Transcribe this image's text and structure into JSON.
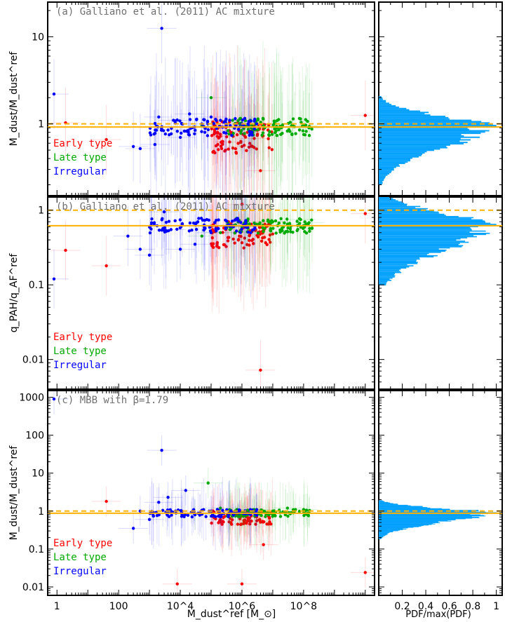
{
  "figure": {
    "x_axis_label": "M_dust^ref [M_⊙]",
    "histogram_x_label": "PDF/max(PDF)",
    "histogram_x_ticks": [
      "0.2",
      "0.4",
      "0.6",
      "0.8",
      "1"
    ]
  },
  "colors": {
    "early": "#ff0000",
    "late": "#00aa00",
    "irregular": "#0000ff",
    "reference_line": "#ffb000",
    "histogram": "#00a0ff"
  },
  "chart_data": [
    {
      "type": "scatter",
      "panel": "a",
      "title": "(a) Galliano et al. (2011) AC mixture",
      "ylabel": "M_dust/M_dust^ref",
      "x_scale": "log",
      "y_scale": "log",
      "xlim": [
        0.5,
        20000000000
      ],
      "ylim": [
        0.15,
        25
      ],
      "x_ticks": [
        "1",
        "100",
        "10^4",
        "10^6",
        "10^8"
      ],
      "y_ticks": [
        "1",
        "10"
      ],
      "reference_dashed": 1.0,
      "median_solid": 0.92,
      "legend": [
        "Early type",
        "Late type",
        "Irregular"
      ],
      "legend_position": "bottom-left",
      "series": [
        {
          "name": "Early type",
          "color": "#ff0000",
          "points": [
            [
              1.9,
              1.03
            ],
            [
              40,
              0.66
            ],
            [
              200000,
              0.72
            ],
            [
              400000,
              0.62
            ],
            [
              700000,
              0.75
            ],
            [
              1000000,
              0.55
            ],
            [
              1500000,
              0.8
            ],
            [
              2500000,
              0.68
            ],
            [
              4000000,
              0.29
            ],
            [
              7000000,
              0.85
            ],
            [
              10000000000,
              1.25
            ]
          ]
        },
        {
          "name": "Late type",
          "color": "#00aa00",
          "points": [
            [
              50000,
              0.95
            ],
            [
              100000,
              2.0
            ],
            [
              500000,
              1.1
            ],
            [
              1000000,
              0.97
            ],
            [
              2000000,
              0.9
            ],
            [
              5000000,
              0.95
            ],
            [
              20000000,
              0.92
            ],
            [
              50000000,
              0.93
            ],
            [
              100000000,
              0.95
            ],
            [
              150000000,
              0.9
            ]
          ]
        },
        {
          "name": "Irregular",
          "color": "#0000ff",
          "points": [
            [
              0.8,
              2.2
            ],
            [
              300,
              0.55
            ],
            [
              500,
              0.52
            ],
            [
              1500,
              0.58
            ],
            [
              2000,
              1.2
            ],
            [
              2500,
              12.5
            ],
            [
              4000,
              0.85
            ],
            [
              6000,
              1.1
            ],
            [
              10000,
              0.7
            ],
            [
              20000,
              1.3
            ],
            [
              50000,
              1.0
            ],
            [
              100000,
              1.2
            ],
            [
              400000,
              1.1
            ],
            [
              1000000,
              1.0
            ],
            [
              3000000,
              1.0
            ]
          ]
        }
      ]
    },
    {
      "type": "scatter",
      "panel": "b",
      "title": "(b) Galliano et al. (2011) AC mixture",
      "ylabel": "q_PAH/q_AF^ref",
      "x_scale": "log",
      "y_scale": "log",
      "xlim": [
        0.5,
        20000000000
      ],
      "ylim": [
        0.004,
        1.5
      ],
      "x_ticks": [
        "1",
        "100",
        "10^4",
        "10^6",
        "10^8"
      ],
      "y_ticks": [
        "0.01",
        "0.1",
        "1"
      ],
      "reference_dashed": 1.0,
      "median_solid": 0.62,
      "legend": [
        "Early type",
        "Late type",
        "Irregular"
      ],
      "legend_position": "bottom-left",
      "series": [
        {
          "name": "Early type",
          "color": "#ff0000",
          "points": [
            [
              1.9,
              0.29
            ],
            [
              40,
              0.18
            ],
            [
              150000,
              0.6
            ],
            [
              300000,
              0.55
            ],
            [
              600000,
              0.5
            ],
            [
              1000000,
              1.2
            ],
            [
              2000000,
              0.65
            ],
            [
              4000000,
              0.0072
            ],
            [
              8000000,
              0.7
            ],
            [
              10000000000,
              0.9
            ]
          ]
        },
        {
          "name": "Late type",
          "color": "#00aa00",
          "points": [
            [
              50000,
              0.45
            ],
            [
              200000,
              0.5
            ],
            [
              1000000,
              0.6
            ],
            [
              3000000,
              0.65
            ],
            [
              10000000,
              0.7
            ],
            [
              30000000,
              0.65
            ],
            [
              80000000,
              0.75
            ],
            [
              100000000,
              0.62
            ],
            [
              150000000,
              0.68
            ]
          ]
        },
        {
          "name": "Irregular",
          "color": "#0000ff",
          "points": [
            [
              0.8,
              0.12
            ],
            [
              200,
              0.45
            ],
            [
              500,
              0.3
            ],
            [
              1000,
              0.25
            ],
            [
              3000,
              0.95
            ],
            [
              5000,
              0.55
            ],
            [
              10000,
              0.3
            ],
            [
              30000,
              0.35
            ],
            [
              100000,
              0.5
            ],
            [
              300000,
              0.6
            ]
          ]
        }
      ]
    },
    {
      "type": "scatter",
      "panel": "c",
      "title": "(c) MBB with β=1.79",
      "ylabel": "M_dust/M_dust^ref",
      "x_scale": "log",
      "y_scale": "log",
      "xlim": [
        0.5,
        20000000000
      ],
      "ylim": [
        0.006,
        1500
      ],
      "x_ticks": [
        "1",
        "100",
        "10^4",
        "10^6",
        "10^8"
      ],
      "y_ticks": [
        "0.01",
        "0.1",
        "1",
        "10",
        "100",
        "1000"
      ],
      "reference_dashed": 1.0,
      "median_solid": 0.88,
      "legend": [
        "Early type",
        "Late type",
        "Irregular"
      ],
      "legend_position": "bottom-left",
      "series": [
        {
          "name": "Early type",
          "color": "#ff0000",
          "points": [
            [
              40,
              1.8
            ],
            [
              8000,
              0.012
            ],
            [
              200000,
              0.6
            ],
            [
              500000,
              0.8
            ],
            [
              1000000,
              0.012
            ],
            [
              1500000,
              1.0
            ],
            [
              3000000,
              0.7
            ],
            [
              5000000,
              0.13
            ],
            [
              10000000000,
              0.024
            ]
          ]
        },
        {
          "name": "Late type",
          "color": "#00aa00",
          "points": [
            [
              30000,
              0.8
            ],
            [
              80000,
              5.5
            ],
            [
              200000,
              1.2
            ],
            [
              1000000,
              0.9
            ],
            [
              3000000,
              1.1
            ],
            [
              10000000,
              1.0
            ],
            [
              30000000,
              1.2
            ],
            [
              100000000,
              1.1
            ],
            [
              150000000,
              0.9
            ]
          ]
        },
        {
          "name": "Irregular",
          "color": "#0000ff",
          "points": [
            [
              0.8,
              900
            ],
            [
              300,
              0.35
            ],
            [
              500,
              1.0
            ],
            [
              1000,
              0.6
            ],
            [
              2000,
              1.7
            ],
            [
              2500,
              40
            ],
            [
              4000,
              2.3
            ],
            [
              7000,
              1.0
            ],
            [
              15000,
              3.5
            ],
            [
              30000,
              0.8
            ],
            [
              100000,
              1.0
            ]
          ]
        }
      ]
    },
    {
      "type": "histogram",
      "panel": "a-side",
      "orientation": "horizontal",
      "xlabel": "PDF/max(PDF)",
      "xlim": [
        0,
        1.05
      ],
      "ylim_shared_with": "a",
      "peak_y": 0.92,
      "reference_dashed": 1.0,
      "median_solid": 0.92
    },
    {
      "type": "histogram",
      "panel": "b-side",
      "orientation": "horizontal",
      "xlabel": "PDF/max(PDF)",
      "xlim": [
        0,
        1.05
      ],
      "ylim_shared_with": "b",
      "peak_y": 0.62,
      "reference_dashed": 1.0,
      "median_solid": 0.62
    },
    {
      "type": "histogram",
      "panel": "c-side",
      "orientation": "horizontal",
      "xlabel": "PDF/max(PDF)",
      "xlim": [
        0,
        1.05
      ],
      "ylim_shared_with": "c",
      "peak_y": 0.88,
      "reference_dashed": 1.0,
      "median_solid": 0.88
    }
  ]
}
